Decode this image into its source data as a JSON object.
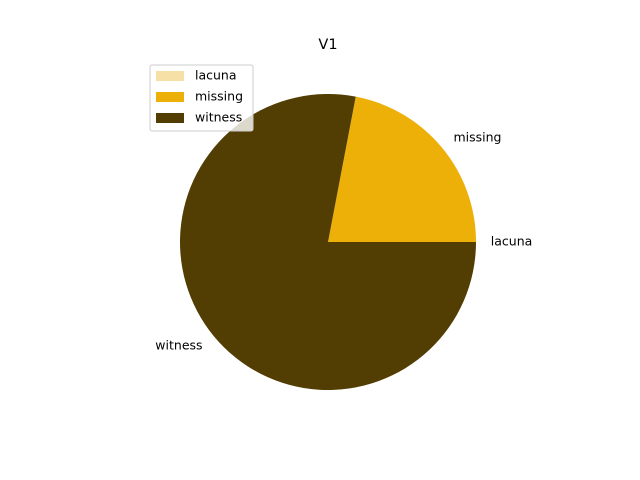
{
  "chart_data": {
    "type": "pie",
    "title": "V1",
    "labels": [
      "lacuna",
      "missing",
      "witness"
    ],
    "values": [
      0.0,
      0.22,
      0.78
    ],
    "colors": [
      "#f6e0a6",
      "#edb009",
      "#523e02"
    ],
    "start_angle_deg": 0,
    "direction": "counterclockwise",
    "legend": {
      "position": "upper-left",
      "entries": [
        "lacuna",
        "missing",
        "witness"
      ]
    }
  }
}
